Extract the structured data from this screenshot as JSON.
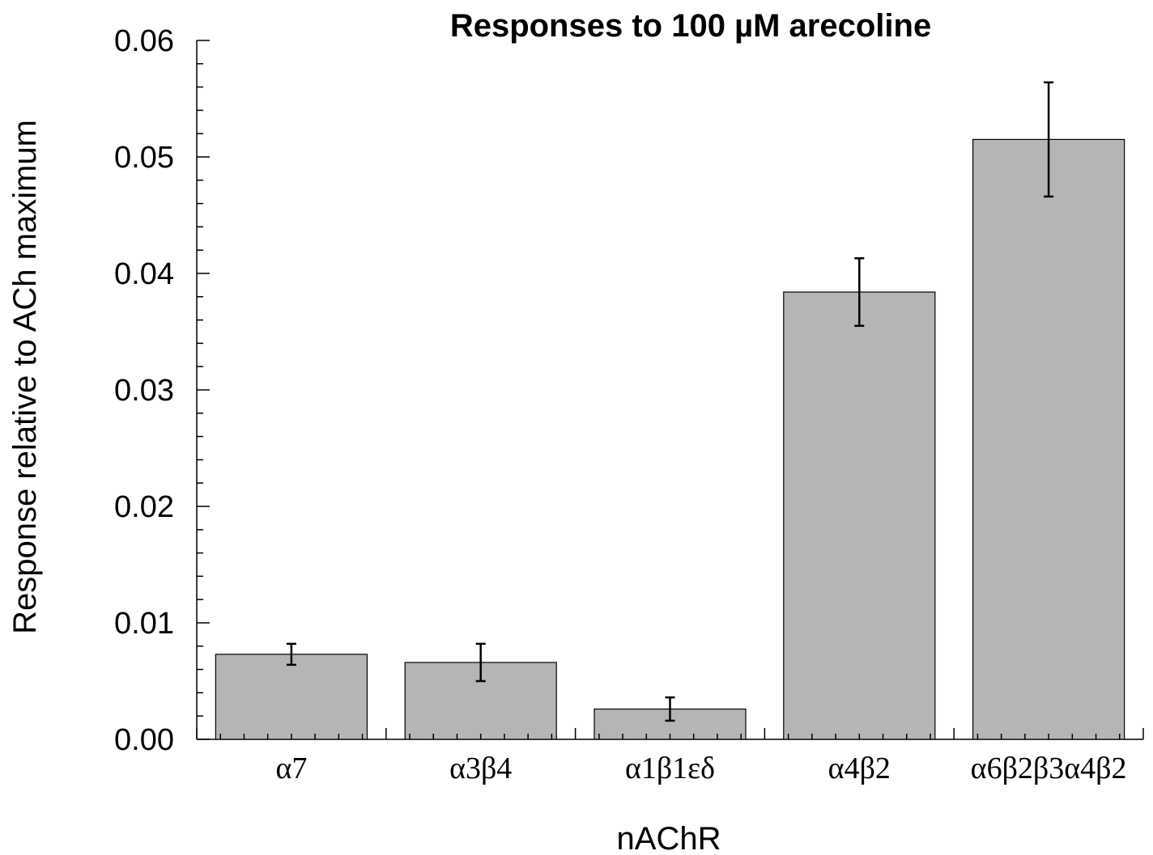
{
  "chart_data": {
    "type": "bar",
    "title": "Responses to 100 µM arecoline",
    "xlabel": "nAChR",
    "ylabel": "Response relative to ACh maximum",
    "categories": [
      "α7",
      "α3β4",
      "α1β1εδ",
      "α4β2",
      "α6β2β3α4β2"
    ],
    "values": [
      0.0073,
      0.0066,
      0.0026,
      0.0384,
      0.0515
    ],
    "errors": [
      0.0009,
      0.0016,
      0.001,
      0.0029,
      0.0049
    ],
    "ylim": [
      0,
      0.06
    ],
    "yticks": [
      "0.00",
      "0.01",
      "0.02",
      "0.03",
      "0.04",
      "0.05",
      "0.06"
    ],
    "ytick_values": [
      0,
      0.01,
      0.02,
      0.03,
      0.04,
      0.05,
      0.06
    ],
    "grid": false,
    "colors": {
      "bar": "#b5b5b5",
      "edge": "#000000"
    }
  }
}
